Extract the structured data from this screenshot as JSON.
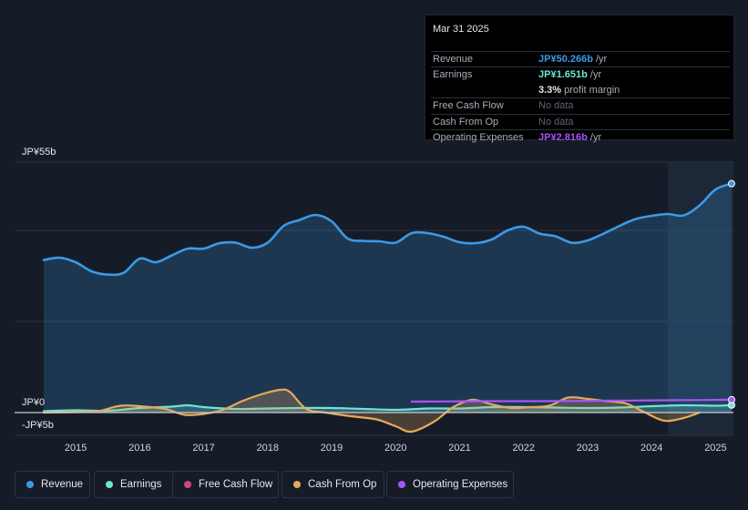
{
  "tooltip": {
    "date": "Mar 31 2025",
    "rows": {
      "revenue": {
        "label": "Revenue",
        "value": "JP¥50.266b",
        "unit": "/yr",
        "color": "#3b9ae8"
      },
      "earnings": {
        "label": "Earnings",
        "value": "JP¥1.651b",
        "unit": "/yr",
        "color": "#6fe3d6"
      },
      "margin": {
        "value": "3.3%",
        "unit": "profit margin"
      },
      "fcf": {
        "label": "Free Cash Flow",
        "value": "No data"
      },
      "cfo": {
        "label": "Cash From Op",
        "value": "No data"
      },
      "opex": {
        "label": "Operating Expenses",
        "value": "JP¥2.816b",
        "unit": "/yr",
        "color": "#a855f7"
      }
    }
  },
  "legend": [
    {
      "label": "Revenue",
      "color": "#3b9ae8"
    },
    {
      "label": "Earnings",
      "color": "#6fe3d6"
    },
    {
      "label": "Free Cash Flow",
      "color": "#c94a7a"
    },
    {
      "label": "Cash From Op",
      "color": "#e8a85a"
    },
    {
      "label": "Operating Expenses",
      "color": "#a855f7"
    }
  ],
  "chart_data": {
    "type": "area",
    "y_unit": "JP¥ billions",
    "ylim": [
      -5,
      55
    ],
    "y_tick_labels": [
      {
        "value": 55,
        "label": "JP¥55b"
      },
      {
        "value": 0,
        "label": "JP¥0"
      },
      {
        "value": -5,
        "label": "-JP¥5b"
      }
    ],
    "x_tick_labels": [
      "2015",
      "2016",
      "2017",
      "2018",
      "2019",
      "2020",
      "2021",
      "2022",
      "2023",
      "2024",
      "2025"
    ],
    "xlim": [
      2014.5,
      2025.25
    ],
    "highlight_start": 2024.25,
    "series": [
      {
        "name": "Revenue",
        "color": "#3b9ae8",
        "fill": true,
        "x": [
          2014.5,
          2014.75,
          2015.0,
          2015.25,
          2015.5,
          2015.75,
          2016.0,
          2016.25,
          2016.5,
          2016.75,
          2017.0,
          2017.25,
          2017.5,
          2017.75,
          2018.0,
          2018.25,
          2018.5,
          2018.75,
          2019.0,
          2019.25,
          2019.5,
          2019.75,
          2020.0,
          2020.25,
          2020.5,
          2020.75,
          2021.0,
          2021.25,
          2021.5,
          2021.75,
          2022.0,
          2022.25,
          2022.5,
          2022.75,
          2023.0,
          2023.25,
          2023.5,
          2023.75,
          2024.0,
          2024.25,
          2024.5,
          2024.75,
          2025.0,
          2025.25
        ],
        "values": [
          33.5,
          34,
          33,
          31,
          30.3,
          30.7,
          33.8,
          33,
          34.5,
          36,
          36,
          37.2,
          37.3,
          36.2,
          37.3,
          41,
          42.3,
          43.4,
          42,
          38.2,
          37.7,
          37.6,
          37.3,
          39.4,
          39.4,
          38.6,
          37.4,
          37.2,
          38,
          40,
          40.8,
          39.3,
          38.7,
          37.3,
          37.8,
          39.3,
          41,
          42.5,
          43.2,
          43.6,
          43.3,
          45.5,
          49,
          50.27
        ]
      },
      {
        "name": "Earnings",
        "color": "#6fe3d6",
        "fill": true,
        "x": [
          2014.5,
          2015.0,
          2015.5,
          2016.0,
          2016.5,
          2016.75,
          2017.0,
          2017.5,
          2018.0,
          2018.5,
          2019.0,
          2019.5,
          2020.0,
          2020.5,
          2021.0,
          2021.5,
          2022.0,
          2022.5,
          2023.0,
          2023.5,
          2024.0,
          2024.5,
          2025.0,
          2025.25
        ],
        "values": [
          0.3,
          0.5,
          0.4,
          1.0,
          1.3,
          1.6,
          1.2,
          0.8,
          0.9,
          1.0,
          1.0,
          0.8,
          0.6,
          0.9,
          0.9,
          1.2,
          1.2,
          1.1,
          1.0,
          1.1,
          1.4,
          1.6,
          1.5,
          1.65
        ]
      },
      {
        "name": "Cash From Op",
        "color": "#e8a85a",
        "fill": true,
        "x": [
          2014.5,
          2015.0,
          2015.35,
          2015.7,
          2016.0,
          2016.4,
          2016.7,
          2017.0,
          2017.3,
          2017.6,
          2017.9,
          2018.2,
          2018.35,
          2018.6,
          2018.9,
          2019.3,
          2019.7,
          2020.0,
          2020.25,
          2020.6,
          2020.9,
          2021.2,
          2021.5,
          2021.8,
          2022.1,
          2022.4,
          2022.7,
          2023.0,
          2023.3,
          2023.6,
          2023.9,
          2024.2,
          2024.5,
          2024.75
        ],
        "values": [
          0,
          0.1,
          0.3,
          1.5,
          1.4,
          0.8,
          -0.5,
          -0.3,
          0.6,
          2.5,
          4.0,
          5.0,
          4.5,
          0.8,
          0,
          -0.8,
          -1.5,
          -3.0,
          -4.2,
          -2.0,
          1.2,
          2.8,
          1.8,
          1.0,
          1.2,
          1.5,
          3.3,
          3.0,
          2.5,
          2.0,
          0,
          -1.8,
          -1.2,
          0
        ]
      },
      {
        "name": "Operating Expenses",
        "color": "#a855f7",
        "fill": false,
        "x": [
          2020.25,
          2020.75,
          2021.25,
          2021.75,
          2022.25,
          2022.75,
          2023.25,
          2023.75,
          2024.25,
          2024.75,
          2025.25
        ],
        "values": [
          2.4,
          2.45,
          2.5,
          2.5,
          2.5,
          2.55,
          2.6,
          2.65,
          2.7,
          2.75,
          2.82
        ]
      }
    ]
  }
}
